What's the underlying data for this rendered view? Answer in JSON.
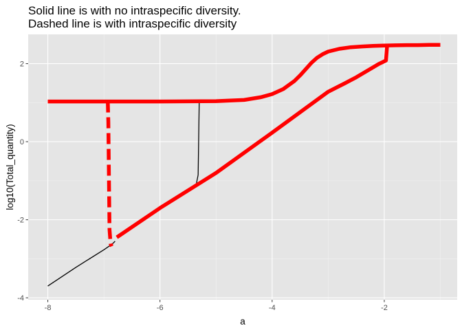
{
  "chart_data": {
    "type": "line",
    "title_lines": [
      "Solid line is with no intraspecific diversity.",
      "Dashed line is with intraspecific diversity"
    ],
    "xlabel": "a",
    "ylabel": "log10(Total_quantity)",
    "xlim": [
      -8.35,
      -0.7
    ],
    "ylim": [
      -4.05,
      2.75
    ],
    "x_ticks": [
      -8,
      -6,
      -4,
      -2
    ],
    "x_tick_labels": [
      "-8",
      "-6",
      "-4",
      "-2"
    ],
    "y_ticks": [
      -4,
      -2,
      0,
      2
    ],
    "y_tick_labels": [
      "-4",
      "-2",
      "0",
      "2"
    ],
    "grid": true,
    "legend": "none",
    "series": [
      {
        "style": "solid",
        "color": "#000000",
        "segments": [
          {
            "x": [
              -8.0,
              -7.5,
              -7.0,
              -6.9,
              -6.85,
              -6.8
            ],
            "y": [
              -3.7,
              -3.22,
              -2.77,
              -2.67,
              -2.62,
              -2.55
            ]
          },
          {
            "x": [
              -5.3,
              -5.32,
              -5.34,
              -5.35
            ],
            "y": [
              1.05,
              -0.85,
              -1.0,
              -1.08
            ]
          }
        ]
      },
      {
        "style": "solid-thick",
        "color": "#ff0000",
        "segments": [
          {
            "x": [
              -8.0,
              -7.0,
              -6.0,
              -5.0,
              -4.5,
              -4.2,
              -4.0,
              -3.8,
              -3.6,
              -3.5,
              -3.4,
              -3.3,
              -3.2,
              -3.1,
              -3.0,
              -2.8,
              -2.6,
              -2.4,
              -2.2,
              -2.0,
              -1.8,
              -1.6,
              -1.4,
              -1.2,
              -1.0
            ],
            "y": [
              1.03,
              1.03,
              1.03,
              1.04,
              1.07,
              1.14,
              1.22,
              1.35,
              1.56,
              1.7,
              1.86,
              2.02,
              2.15,
              2.24,
              2.31,
              2.38,
              2.42,
              2.44,
              2.455,
              2.465,
              2.47,
              2.475,
              2.475,
              2.48,
              2.48
            ]
          },
          {
            "x": [
              -6.77,
              -6.0,
              -5.0,
              -4.0,
              -3.0,
              -2.7,
              -2.5,
              -2.3,
              -2.1,
              -1.97,
              -1.95
            ],
            "y": [
              -2.45,
              -1.7,
              -0.8,
              0.23,
              1.28,
              1.5,
              1.65,
              1.82,
              1.99,
              2.08,
              2.45
            ]
          }
        ]
      },
      {
        "style": "dashed",
        "color": "#ff0000",
        "segments": [
          {
            "x": [
              -6.93,
              -6.92,
              -6.91,
              -6.9,
              -6.88,
              -6.86
            ],
            "y": [
              1.03,
              0.5,
              -1.0,
              -2.25,
              -2.62,
              -2.68
            ]
          }
        ]
      }
    ]
  }
}
